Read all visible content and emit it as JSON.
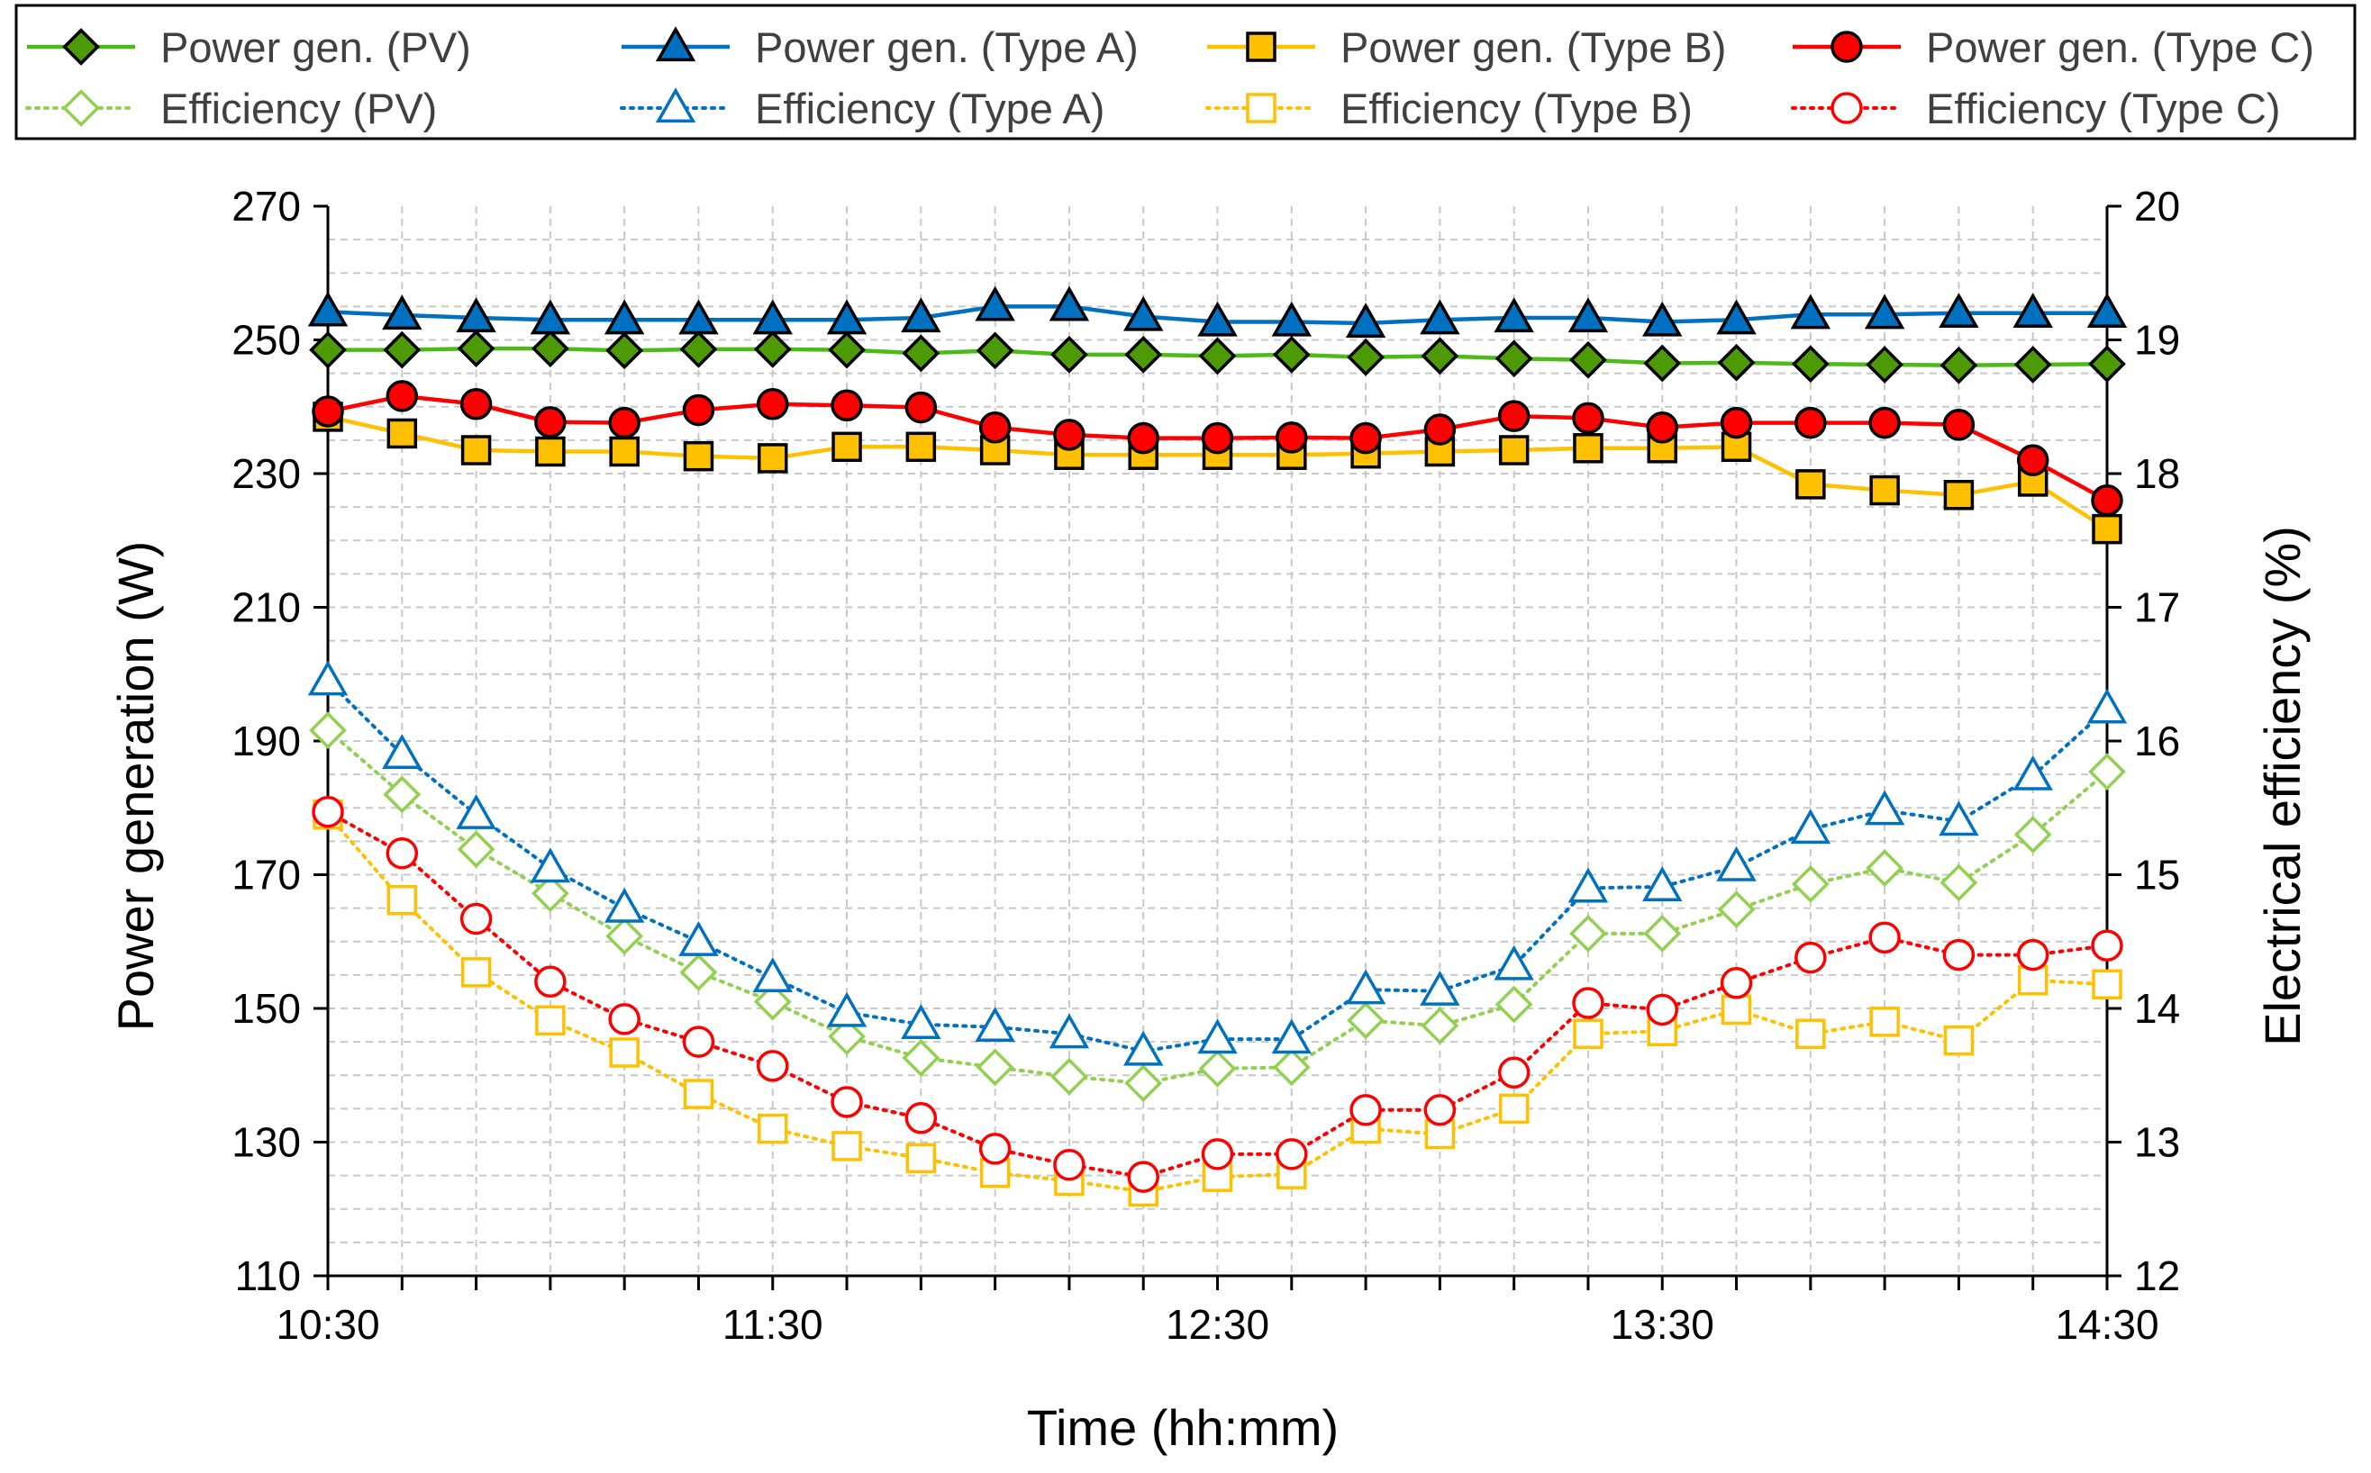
{
  "chart_data": {
    "type": "line",
    "xlabel": "Time (hh:mm)",
    "ylabel": "Power generation (W)",
    "y2label": "Electrical efficiency (%)",
    "x": [
      "10:30",
      "10:40",
      "10:50",
      "11:00",
      "11:10",
      "11:20",
      "11:30",
      "11:40",
      "11:50",
      "12:00",
      "12:10",
      "12:20",
      "12:30",
      "12:40",
      "12:50",
      "13:00",
      "13:10",
      "13:20",
      "13:30",
      "13:40",
      "13:50",
      "14:00",
      "14:10",
      "14:20",
      "14:30"
    ],
    "xticks": [
      "10:30",
      "11:30",
      "12:30",
      "13:30",
      "14:30"
    ],
    "ylim": [
      110,
      270
    ],
    "yticks": [
      "110",
      "130",
      "150",
      "170",
      "190",
      "210",
      "230",
      "250",
      "270"
    ],
    "y2lim": [
      12,
      20
    ],
    "y2ticks": [
      "12",
      "13",
      "14",
      "15",
      "16",
      "17",
      "18",
      "19",
      "20"
    ],
    "grid": true,
    "legend_position": "top",
    "series": [
      {
        "name": "Power gen. (PV)",
        "axis": "left",
        "style": "solid",
        "marker": "diamond",
        "filled": true,
        "color": "#4cbb17",
        "fill": "#4e9a06",
        "values": [
          248.5,
          248.5,
          248.7,
          248.7,
          248.4,
          248.6,
          248.6,
          248.5,
          248,
          248.4,
          247.8,
          247.8,
          247.6,
          247.8,
          247.4,
          247.6,
          247.2,
          247,
          246.5,
          246.6,
          246.4,
          246.3,
          246.2,
          246.3,
          246.4
        ]
      },
      {
        "name": "Power gen. (Type A)",
        "axis": "left",
        "style": "solid",
        "marker": "triangle",
        "filled": true,
        "color": "#0070c0",
        "fill": "#0070c0",
        "values": [
          254.2,
          253.7,
          253.3,
          253,
          253,
          253,
          253,
          253,
          253.3,
          255,
          255,
          253.5,
          252.7,
          252.7,
          252.5,
          253,
          253.3,
          253.3,
          252.7,
          253,
          253.8,
          253.8,
          254,
          254,
          254
        ]
      },
      {
        "name": "Power gen. (Type B)",
        "axis": "left",
        "style": "solid",
        "marker": "square",
        "filled": true,
        "color": "#ffc000",
        "fill": "#ffc000",
        "values": [
          238.5,
          236,
          233.5,
          233.3,
          233.3,
          232.6,
          232.3,
          234,
          234,
          233.5,
          232.8,
          232.8,
          232.8,
          232.8,
          233,
          233.3,
          233.5,
          233.8,
          233.8,
          234,
          228.4,
          227.5,
          226.8,
          228.8,
          221.7
        ]
      },
      {
        "name": "Power gen. (Type C)",
        "axis": "left",
        "style": "solid",
        "marker": "circle",
        "filled": true,
        "color": "#ff0000",
        "fill": "#ff0000",
        "values": [
          239.3,
          241.6,
          240.4,
          237.7,
          237.6,
          239.5,
          240.4,
          240.2,
          239.9,
          236.9,
          235.8,
          235.3,
          235.3,
          235.4,
          235.3,
          236.6,
          238.6,
          238.3,
          236.9,
          237.6,
          237.6,
          237.6,
          237.3,
          232,
          226
        ]
      },
      {
        "name": "Efficiency (PV)",
        "axis": "right",
        "style": "dotted",
        "marker": "diamond",
        "filled": false,
        "color": "#92d050",
        "fill": "#ffffff",
        "values": [
          16.08,
          15.6,
          15.19,
          14.86,
          14.54,
          14.27,
          14.05,
          13.79,
          13.63,
          13.56,
          13.49,
          13.44,
          13.55,
          13.56,
          13.91,
          13.87,
          14.03,
          14.56,
          14.56,
          14.74,
          14.93,
          15.05,
          14.94,
          15.3,
          15.77
        ]
      },
      {
        "name": "Efficiency (Type A)",
        "axis": "right",
        "style": "dotted",
        "marker": "triangle",
        "filled": false,
        "color": "#0070c0",
        "fill": "#ffffff",
        "values": [
          16.45,
          15.9,
          15.45,
          15.05,
          14.75,
          14.5,
          14.23,
          13.97,
          13.88,
          13.86,
          13.81,
          13.68,
          13.77,
          13.77,
          14.14,
          14.13,
          14.32,
          14.9,
          14.91,
          15.06,
          15.34,
          15.48,
          15.4,
          15.74,
          16.24
        ]
      },
      {
        "name": "Efficiency (Type B)",
        "axis": "right",
        "style": "dotted",
        "marker": "square",
        "filled": false,
        "color": "#ffc000",
        "fill": "#ffffff",
        "values": [
          15.45,
          14.81,
          14.27,
          13.91,
          13.67,
          13.36,
          13.1,
          12.97,
          12.88,
          12.77,
          12.71,
          12.63,
          12.74,
          12.76,
          13.1,
          13.06,
          13.25,
          13.81,
          13.83,
          13.99,
          13.81,
          13.9,
          13.76,
          14.21,
          14.18
        ]
      },
      {
        "name": "Efficiency (Type C)",
        "axis": "right",
        "style": "dotted",
        "marker": "circle",
        "filled": false,
        "color": "#ff0000",
        "fill": "#ffffff",
        "values": [
          15.47,
          15.16,
          14.67,
          14.2,
          13.92,
          13.75,
          13.57,
          13.3,
          13.18,
          12.95,
          12.83,
          12.74,
          12.91,
          12.91,
          13.24,
          13.24,
          13.52,
          14.04,
          13.99,
          14.19,
          14.38,
          14.53,
          14.4,
          14.4,
          14.47
        ]
      }
    ]
  }
}
